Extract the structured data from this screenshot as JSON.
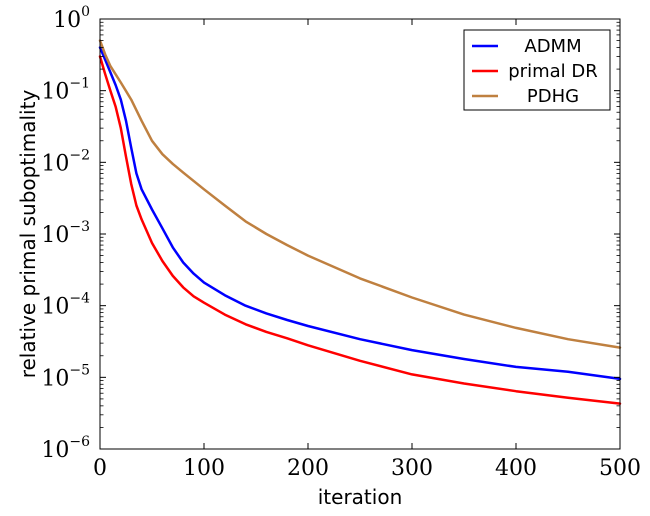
{
  "chart_data": {
    "type": "line",
    "title": "",
    "xlabel": "iteration",
    "ylabel": "relative primal suboptimality",
    "xlim": [
      0,
      500
    ],
    "ylim": [
      1e-06,
      1
    ],
    "yscale": "log",
    "xticks": [
      0,
      100,
      200,
      300,
      400,
      500
    ],
    "yticks": [
      {
        "base": "10",
        "exp": "0",
        "value": 1
      },
      {
        "base": "10",
        "exp": "−1",
        "value": 0.1
      },
      {
        "base": "10",
        "exp": "−2",
        "value": 0.01
      },
      {
        "base": "10",
        "exp": "−3",
        "value": 0.001
      },
      {
        "base": "10",
        "exp": "−4",
        "value": 0.0001
      },
      {
        "base": "10",
        "exp": "−5",
        "value": 1e-05
      },
      {
        "base": "10",
        "exp": "−6",
        "value": 1e-06
      }
    ],
    "grid": false,
    "legend_position": "top-right",
    "series": [
      {
        "name": "ADMM",
        "color": "#0000ff",
        "x": [
          0,
          5,
          10,
          15,
          20,
          25,
          30,
          35,
          40,
          50,
          60,
          70,
          80,
          90,
          100,
          120,
          140,
          160,
          180,
          200,
          250,
          300,
          350,
          400,
          450,
          500
        ],
        "y": [
          0.4,
          0.27,
          0.18,
          0.12,
          0.075,
          0.038,
          0.016,
          0.007,
          0.0042,
          0.0022,
          0.0012,
          0.00065,
          0.0004,
          0.00028,
          0.00021,
          0.00014,
          0.0001,
          7.8e-05,
          6.3e-05,
          5.2e-05,
          3.4e-05,
          2.4e-05,
          1.8e-05,
          1.4e-05,
          1.2e-05,
          9.5e-06
        ]
      },
      {
        "name": "primal DR",
        "color": "#ff0000",
        "x": [
          0,
          5,
          10,
          15,
          20,
          25,
          30,
          35,
          40,
          50,
          60,
          70,
          80,
          90,
          100,
          120,
          140,
          160,
          180,
          200,
          250,
          300,
          350,
          400,
          450,
          500
        ],
        "y": [
          0.3,
          0.17,
          0.1,
          0.06,
          0.03,
          0.012,
          0.005,
          0.0025,
          0.0016,
          0.00075,
          0.00042,
          0.00026,
          0.00018,
          0.000135,
          0.00011,
          7.5e-05,
          5.5e-05,
          4.3e-05,
          3.5e-05,
          2.8e-05,
          1.7e-05,
          1.1e-05,
          8.2e-06,
          6.4e-06,
          5.2e-06,
          4.3e-06
        ]
      },
      {
        "name": "PDHG",
        "color": "#bf8040",
        "x": [
          0,
          5,
          10,
          20,
          30,
          40,
          50,
          60,
          70,
          80,
          100,
          120,
          140,
          160,
          180,
          200,
          250,
          300,
          350,
          400,
          450,
          500
        ],
        "y": [
          0.5,
          0.32,
          0.22,
          0.13,
          0.075,
          0.038,
          0.02,
          0.013,
          0.0095,
          0.0072,
          0.0042,
          0.0025,
          0.0015,
          0.001,
          0.0007,
          0.0005,
          0.00024,
          0.00013,
          7.5e-05,
          4.9e-05,
          3.4e-05,
          2.6e-05
        ]
      }
    ]
  }
}
